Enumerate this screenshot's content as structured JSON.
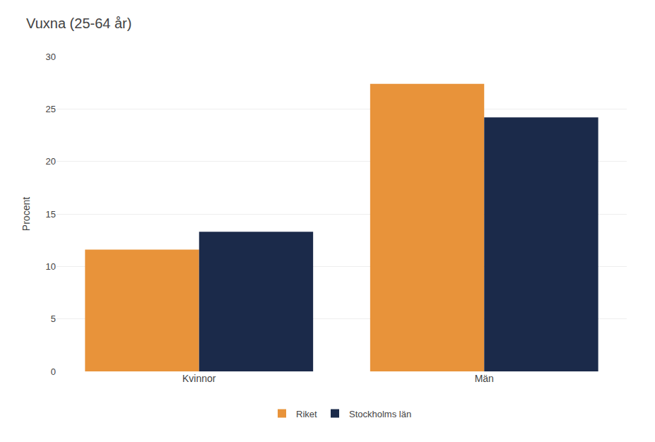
{
  "chart_data": {
    "type": "bar",
    "title": "Vuxna (25-64 år)",
    "ylabel": "Procent",
    "categories": [
      "Kvinnor",
      "Män"
    ],
    "series": [
      {
        "name": "Riket",
        "color": "#E8933A",
        "values": [
          11.6,
          27.4
        ]
      },
      {
        "name": "Stockholms län",
        "color": "#1B2A4A",
        "values": [
          13.3,
          24.2
        ]
      }
    ],
    "ylim": [
      0,
      30
    ],
    "yticks": [
      0,
      5,
      10,
      15,
      20,
      25,
      30
    ],
    "grid": true,
    "legend": "bottom"
  }
}
